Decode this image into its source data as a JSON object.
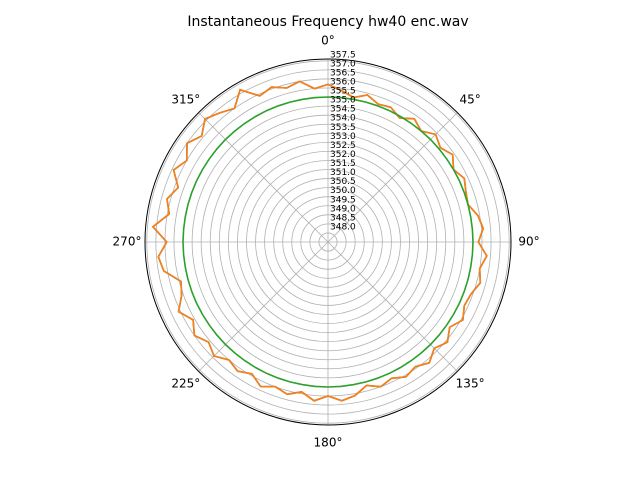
{
  "chart_data": {
    "type": "polar-line",
    "title": "Instantaneous Frequency  hw40 enc.wav",
    "theta": [
      0,
      5,
      10,
      15,
      20,
      25,
      30,
      35,
      40,
      45,
      50,
      55,
      60,
      65,
      70,
      75,
      80,
      85,
      90,
      95,
      100,
      105,
      110,
      115,
      120,
      125,
      130,
      135,
      140,
      145,
      150,
      155,
      160,
      165,
      170,
      175,
      180,
      185,
      190,
      195,
      200,
      205,
      210,
      215,
      220,
      225,
      230,
      235,
      240,
      245,
      250,
      255,
      260,
      265,
      270,
      275,
      280,
      285,
      290,
      295,
      300,
      305,
      310,
      315,
      320,
      325,
      330,
      335,
      340,
      345,
      350,
      355
    ],
    "series": [
      {
        "name": "blue",
        "color": "#1f77b4",
        "values": [
          356.2,
          355.9,
          355.6,
          355.9,
          355.6,
          355.7,
          355.4,
          355.8,
          355.5,
          355.9,
          355.6,
          355.9,
          355.5,
          355.8,
          355.6,
          355.5,
          355.9,
          356.1,
          355.8,
          356.3,
          356.0,
          356.2,
          355.9,
          355.8,
          356.1,
          355.7,
          356.1,
          355.8,
          356.2,
          355.9,
          356.1,
          355.8,
          356.0,
          355.7,
          356.1,
          356.3,
          356.0,
          356.3,
          355.9,
          356.2,
          356.0,
          356.3,
          355.9,
          356.2,
          356.0,
          356.4,
          356.1,
          356.5,
          356.1,
          356.6,
          356.1,
          355.9,
          356.7,
          356.9,
          356.4,
          357.2,
          356.4,
          356.7,
          356.3,
          356.9,
          356.5,
          357.0,
          356.6,
          357.1,
          356.8,
          356.5,
          357.2,
          356.4,
          356.6,
          356.3,
          356.5,
          356.0
        ]
      },
      {
        "name": "orange",
        "color": "#ff7f0e",
        "values": [
          356.2,
          355.9,
          355.6,
          355.9,
          355.6,
          355.7,
          355.4,
          355.8,
          355.5,
          355.9,
          355.6,
          355.9,
          355.5,
          355.8,
          355.6,
          355.5,
          355.9,
          356.1,
          355.8,
          356.3,
          356.0,
          356.2,
          355.9,
          355.8,
          356.1,
          355.7,
          356.1,
          355.8,
          356.2,
          355.9,
          356.1,
          355.8,
          356.0,
          355.7,
          356.1,
          356.3,
          356.0,
          356.3,
          355.9,
          356.2,
          356.0,
          356.3,
          355.9,
          356.2,
          356.0,
          356.4,
          356.1,
          356.5,
          356.1,
          356.6,
          356.1,
          355.9,
          356.7,
          356.9,
          356.4,
          357.2,
          356.4,
          356.7,
          356.3,
          356.9,
          356.5,
          357.0,
          356.6,
          357.1,
          356.8,
          356.5,
          357.2,
          356.4,
          356.6,
          356.3,
          356.5,
          356.0
        ]
      },
      {
        "name": "green",
        "color": "#2ca02c",
        "values": [
          355.5,
          355.5,
          355.5,
          355.5,
          355.5,
          355.5,
          355.5,
          355.5,
          355.5,
          355.5,
          355.5,
          355.5,
          355.5,
          355.5,
          355.5,
          355.5,
          355.5,
          355.5,
          355.5,
          355.5,
          355.5,
          355.5,
          355.5,
          355.5,
          355.5,
          355.5,
          355.5,
          355.5,
          355.5,
          355.5,
          355.5,
          355.5,
          355.5,
          355.5,
          355.5,
          355.5,
          355.5,
          355.5,
          355.5,
          355.5,
          355.5,
          355.5,
          355.5,
          355.5,
          355.5,
          355.5,
          355.5,
          355.5,
          355.5,
          355.5,
          355.5,
          355.5,
          355.5,
          355.5,
          355.5,
          355.5,
          355.5,
          355.5,
          355.5,
          355.5,
          355.5,
          355.5,
          355.5,
          355.5,
          355.5,
          355.5,
          355.5,
          355.5,
          355.5,
          355.5,
          355.5,
          355.5
        ]
      }
    ],
    "rlim": [
      347.5,
      357.6
    ],
    "rticks": [
      {
        "value": 348,
        "label": "348.0"
      },
      348.5,
      {
        "value": 349,
        "label": "349.0"
      },
      349.5,
      {
        "value": 350,
        "label": "350.0"
      },
      350.5,
      {
        "value": 351,
        "label": "351.0"
      },
      351.5,
      {
        "value": 352,
        "label": "352.0"
      },
      352.5,
      {
        "value": 353,
        "label": "353.0"
      },
      353.5,
      {
        "value": 354,
        "label": "354.0"
      },
      354.5,
      {
        "value": 355,
        "label": "355.0"
      },
      355.5,
      {
        "value": 356,
        "label": "356.0"
      },
      356.5,
      {
        "value": 357,
        "label": "357.0"
      },
      357.5
    ],
    "thetaticks": [
      {
        "value": 0,
        "label": "0°"
      },
      {
        "value": 45,
        "label": "45°"
      },
      {
        "value": 90,
        "label": "90°"
      },
      {
        "value": 135,
        "label": "135°"
      },
      {
        "value": 180,
        "label": "180°"
      },
      {
        "value": 225,
        "label": "225°"
      },
      {
        "value": 270,
        "label": "270°"
      },
      {
        "value": 315,
        "label": "315°"
      }
    ],
    "grid": true
  }
}
